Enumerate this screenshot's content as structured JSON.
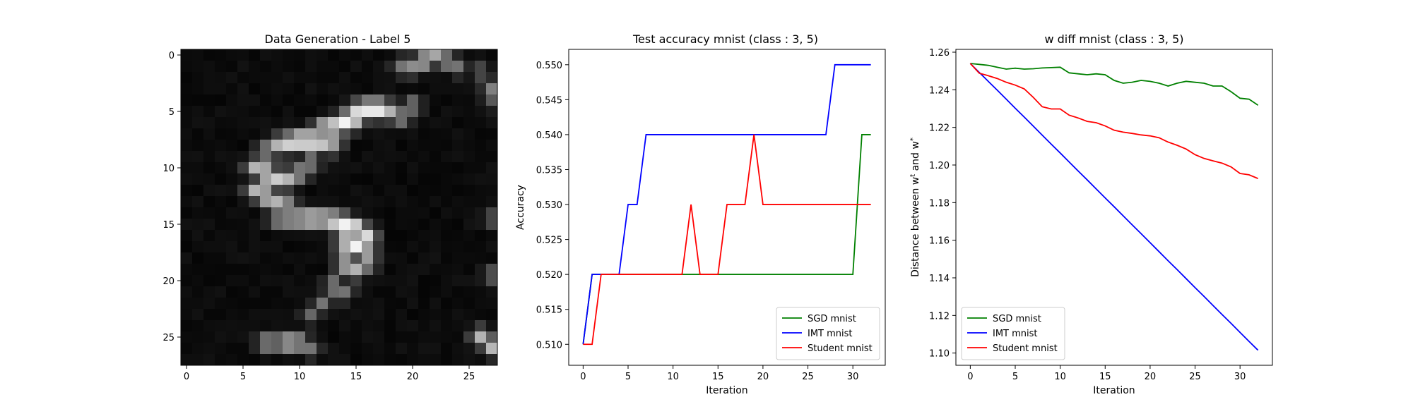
{
  "chart_data": [
    {
      "type": "heatmap",
      "title": "Data Generation - Label 5",
      "colormap": "gray",
      "xticks": [
        0,
        5,
        10,
        15,
        20,
        25
      ],
      "yticks": [
        0,
        5,
        10,
        15,
        20,
        25
      ],
      "grid_size": [
        28,
        28
      ],
      "xlim": [
        -0.5,
        27.5
      ],
      "ylim": [
        27.5,
        -0.5
      ],
      "strokes": [
        [
          [
            19,
            1,
            0.45
          ],
          [
            20,
            1,
            0.55
          ],
          [
            21,
            0.5,
            0.7
          ],
          [
            22,
            0,
            0.65
          ],
          [
            23,
            0.5,
            0.55
          ],
          [
            24,
            1,
            0.45
          ]
        ],
        [
          [
            26,
            1.5,
            0.35
          ],
          [
            27,
            3,
            0.5
          ],
          [
            27,
            4,
            0.35
          ]
        ],
        [
          [
            14,
            5.5,
            0.55
          ],
          [
            15,
            5,
            0.85
          ],
          [
            16,
            4.8,
            0.95
          ],
          [
            17,
            4.8,
            0.95
          ],
          [
            18,
            5,
            0.7
          ],
          [
            19,
            5.5,
            0.55
          ],
          [
            20,
            4.5,
            0.5
          ]
        ],
        [
          [
            12,
            6.5,
            0.75
          ],
          [
            13,
            6.4,
            0.9
          ],
          [
            14,
            6,
            0.95
          ],
          [
            15,
            5.8,
            0.75
          ]
        ],
        [
          [
            7,
            8.5,
            0.55
          ],
          [
            8,
            8,
            0.7
          ],
          [
            9,
            7.8,
            0.85
          ],
          [
            10,
            7.6,
            0.95
          ],
          [
            11,
            7.6,
            0.95
          ],
          [
            12,
            7.8,
            0.8
          ],
          [
            13,
            8,
            0.6
          ]
        ],
        [
          [
            6,
            10,
            0.7
          ],
          [
            7,
            10.5,
            0.85
          ],
          [
            8,
            11,
            0.8
          ],
          [
            9,
            11,
            0.7
          ],
          [
            10,
            10.5,
            0.6
          ],
          [
            11,
            9.5,
            0.55
          ]
        ],
        [
          [
            6,
            12,
            0.7
          ],
          [
            7,
            12.5,
            0.8
          ],
          [
            8,
            13,
            0.7
          ],
          [
            9,
            13.5,
            0.65
          ]
        ],
        [
          [
            8,
            14.5,
            0.55
          ],
          [
            9,
            14.5,
            0.65
          ],
          [
            10,
            14.5,
            0.7
          ],
          [
            11,
            14.5,
            0.8
          ],
          [
            12,
            14.5,
            0.75
          ],
          [
            13,
            14.7,
            0.85
          ],
          [
            14,
            15,
            0.95
          ],
          [
            15,
            15.4,
            0.95
          ],
          [
            16,
            16,
            0.85
          ]
        ],
        [
          [
            14,
            16.5,
            0.9
          ],
          [
            15,
            17,
            0.95
          ],
          [
            16,
            17.5,
            0.8
          ],
          [
            14,
            18.5,
            0.75
          ],
          [
            15,
            19,
            0.7
          ],
          [
            16,
            18.5,
            0.55
          ]
        ],
        [
          [
            13,
            20.5,
            0.55
          ],
          [
            14,
            21,
            0.45
          ],
          [
            12,
            22,
            0.45
          ],
          [
            11,
            23,
            0.4
          ]
        ],
        [
          [
            7,
            25.5,
            0.55
          ],
          [
            8,
            25.5,
            0.5
          ],
          [
            9,
            25.5,
            0.7
          ],
          [
            10,
            25.5,
            0.6
          ],
          [
            11,
            26,
            0.45
          ]
        ],
        [
          [
            26,
            25,
            0.7
          ],
          [
            27,
            25.8,
            0.75
          ],
          [
            27,
            14.5,
            0.35
          ],
          [
            27,
            19.5,
            0.4
          ]
        ]
      ]
    },
    {
      "type": "line",
      "title": "Test accuracy mnist (class : 3, 5)",
      "xlabel": "Iteration",
      "ylabel": "Accuracy",
      "xlim": [
        -1.6,
        33.6
      ],
      "ylim": [
        0.507,
        0.5522
      ],
      "xticks": [
        0,
        5,
        10,
        15,
        20,
        25,
        30
      ],
      "yticks": [
        0.51,
        0.515,
        0.52,
        0.525,
        0.53,
        0.535,
        0.54,
        0.545,
        0.55
      ],
      "ytick_labels": [
        "0.510",
        "0.515",
        "0.520",
        "0.525",
        "0.530",
        "0.535",
        "0.540",
        "0.545",
        "0.550"
      ],
      "legend_position": "lower right",
      "x": [
        0,
        1,
        2,
        3,
        4,
        5,
        6,
        7,
        8,
        9,
        10,
        11,
        12,
        13,
        14,
        15,
        16,
        17,
        18,
        19,
        20,
        21,
        22,
        23,
        24,
        25,
        26,
        27,
        28,
        29,
        30,
        31,
        32
      ],
      "series": [
        {
          "name": "SGD mnist",
          "color": "#008000",
          "values": [
            0.51,
            0.52,
            0.52,
            0.52,
            0.52,
            0.52,
            0.52,
            0.52,
            0.52,
            0.52,
            0.52,
            0.52,
            0.52,
            0.52,
            0.52,
            0.52,
            0.52,
            0.52,
            0.52,
            0.52,
            0.52,
            0.52,
            0.52,
            0.52,
            0.52,
            0.52,
            0.52,
            0.52,
            0.52,
            0.52,
            0.52,
            0.54,
            0.54
          ]
        },
        {
          "name": "IMT mnist",
          "color": "#0000ff",
          "values": [
            0.51,
            0.52,
            0.52,
            0.52,
            0.52,
            0.53,
            0.53,
            0.54,
            0.54,
            0.54,
            0.54,
            0.54,
            0.54,
            0.54,
            0.54,
            0.54,
            0.54,
            0.54,
            0.54,
            0.54,
            0.54,
            0.54,
            0.54,
            0.54,
            0.54,
            0.54,
            0.54,
            0.54,
            0.55,
            0.55,
            0.55,
            0.55,
            0.55
          ]
        },
        {
          "name": "Student mnist",
          "color": "#ff0000",
          "values": [
            0.51,
            0.51,
            0.52,
            0.52,
            0.52,
            0.52,
            0.52,
            0.52,
            0.52,
            0.52,
            0.52,
            0.52,
            0.53,
            0.52,
            0.52,
            0.52,
            0.53,
            0.53,
            0.53,
            0.54,
            0.53,
            0.53,
            0.53,
            0.53,
            0.53,
            0.53,
            0.53,
            0.53,
            0.53,
            0.53,
            0.53,
            0.53,
            0.53
          ]
        }
      ]
    },
    {
      "type": "line",
      "title": "w diff mnist (class : 3, 5)",
      "xlabel": "Iteration",
      "ylabel": "Distance between w",
      "ylabel_sup1": "t",
      "ylabel_mid": " and w",
      "ylabel_sup2": "*",
      "xlim": [
        -1.6,
        33.6
      ],
      "ylim": [
        1.0935,
        1.2615
      ],
      "xticks": [
        0,
        5,
        10,
        15,
        20,
        25,
        30
      ],
      "yticks": [
        1.1,
        1.12,
        1.14,
        1.16,
        1.18,
        1.2,
        1.22,
        1.24,
        1.26
      ],
      "ytick_labels": [
        "1.10",
        "1.12",
        "1.14",
        "1.16",
        "1.18",
        "1.20",
        "1.22",
        "1.24",
        "1.26"
      ],
      "legend_position": "lower left",
      "x": [
        0,
        1,
        2,
        3,
        4,
        5,
        6,
        7,
        8,
        9,
        10,
        11,
        12,
        13,
        14,
        15,
        16,
        17,
        18,
        19,
        20,
        21,
        22,
        23,
        24,
        25,
        26,
        27,
        28,
        29,
        30,
        31,
        32
      ],
      "series": [
        {
          "name": "SGD mnist",
          "color": "#008000",
          "values": [
            1.254,
            1.2535,
            1.253,
            1.252,
            1.251,
            1.2515,
            1.251,
            1.2512,
            1.2516,
            1.2518,
            1.252,
            1.249,
            1.2485,
            1.248,
            1.2485,
            1.248,
            1.245,
            1.2435,
            1.244,
            1.245,
            1.2445,
            1.2435,
            1.242,
            1.2435,
            1.2445,
            1.244,
            1.2435,
            1.242,
            1.242,
            1.239,
            1.2355,
            1.235,
            1.2318
          ]
        },
        {
          "name": "IMT mnist",
          "color": "#0000ff",
          "values": [
            1.254,
            1.2492,
            1.2445,
            1.2398,
            1.235,
            1.2302,
            1.2255,
            1.2207,
            1.2159,
            1.2111,
            1.2064,
            1.2016,
            1.1968,
            1.1921,
            1.1873,
            1.1825,
            1.1778,
            1.173,
            1.1682,
            1.1635,
            1.1587,
            1.1539,
            1.1491,
            1.1444,
            1.1396,
            1.1348,
            1.1301,
            1.1253,
            1.1205,
            1.1158,
            1.111,
            1.1062,
            1.1015
          ]
        },
        {
          "name": "Student mnist",
          "color": "#ff0000",
          "values": [
            1.254,
            1.2488,
            1.2475,
            1.246,
            1.244,
            1.2425,
            1.2405,
            1.236,
            1.231,
            1.2298,
            1.2298,
            1.2265,
            1.225,
            1.2232,
            1.2225,
            1.2208,
            1.2185,
            1.2175,
            1.2168,
            1.216,
            1.2155,
            1.2145,
            1.2122,
            1.2105,
            1.2085,
            1.2055,
            1.2035,
            1.2022,
            1.201,
            1.199,
            1.1955,
            1.1948,
            1.1928
          ]
        }
      ]
    }
  ]
}
